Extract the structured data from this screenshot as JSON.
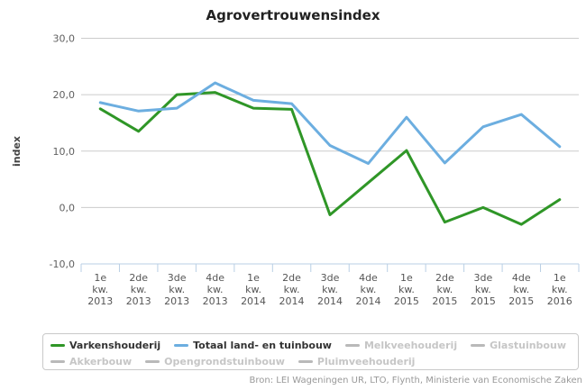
{
  "chart_data": {
    "type": "line",
    "title": "Agrovertrouwensindex",
    "ylabel": "index",
    "source": "Bron: LEI Wageningen UR, LTO, Flynth, Ministerie van Economische Zaken",
    "categories": [
      "1e kw. 2013",
      "2de kw. 2013",
      "3de kw. 2013",
      "4de kw. 2013",
      "1e kw. 2014",
      "2de kw. 2014",
      "3de kw. 2014",
      "4de kw. 2014",
      "1e kw. 2015",
      "2de kw. 2015",
      "3de kw. 2015",
      "4de kw. 2015",
      "1e kw. 2016"
    ],
    "ylim": [
      -10,
      30
    ],
    "yticks": [
      30,
      20,
      10,
      0,
      -10
    ],
    "ytick_labels": [
      "30,0",
      "20,0",
      "10,0",
      "0,0",
      "-10,0"
    ],
    "grid": "horizontal-only",
    "legend_position": "bottom-box",
    "series": [
      {
        "key": "varkenshouderij",
        "name": "Varkenshouderij",
        "color": "#2f9627",
        "enabled": true,
        "values": [
          17.5,
          13.5,
          20.0,
          20.4,
          17.6,
          17.4,
          -1.3,
          4.4,
          10.1,
          -2.6,
          0.0,
          -3.0,
          1.4
        ]
      },
      {
        "key": "totaal-land-en-tuinbouw",
        "name": "Totaal land- en tuinbouw",
        "color": "#6caee0",
        "enabled": true,
        "values": [
          18.6,
          17.1,
          17.6,
          22.1,
          19.0,
          18.4,
          11.0,
          7.8,
          16.0,
          7.9,
          14.3,
          16.5,
          10.8
        ]
      },
      {
        "key": "melkveehouderij",
        "name": "Melkveehouderij",
        "enabled": false
      },
      {
        "key": "glastuinbouw",
        "name": "Glastuinbouw",
        "enabled": false
      },
      {
        "key": "akkerbouw",
        "name": "Akkerbouw",
        "enabled": false
      },
      {
        "key": "opengrondstuinbouw",
        "name": "Opengrondstuinbouw",
        "enabled": false
      },
      {
        "key": "pluimveehouderij",
        "name": "Pluimveehouderij",
        "enabled": false
      }
    ],
    "colors": {
      "grid": "#cccccc",
      "axis": "#b9cfe4",
      "tick_label": "#606060",
      "x_label": "#555555",
      "title": "#222222",
      "axis_title": "#444444",
      "legend_active": "#333333",
      "legend_disabled_text": "#c6c6c6",
      "legend_disabled_line": "#b9b9b9",
      "source": "#999999"
    }
  }
}
